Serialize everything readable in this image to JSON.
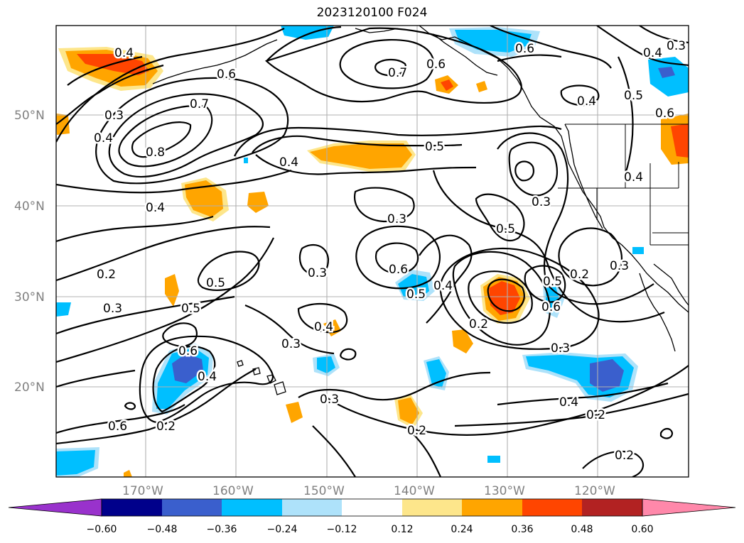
{
  "title": "2023120100 F024",
  "latitude_labels": [
    "50°N",
    "40°N",
    "30°N",
    "20°N"
  ],
  "longitude_labels": [
    "170°W",
    "160°W",
    "150°W",
    "140°W",
    "130°W",
    "120°W"
  ],
  "contour_labels": [
    {
      "text": "0.4",
      "name": "contour-label-gulf-alaska"
    },
    {
      "text": "0.6",
      "name": "contour-label-aleutian"
    },
    {
      "text": "0.7",
      "name": "contour-label-north-low"
    },
    {
      "text": "0.6",
      "name": "contour-label-north-low-outer"
    },
    {
      "text": "0.6",
      "name": "contour-label-alaska-coast"
    },
    {
      "text": "0.4",
      "name": "contour-label-ne-corner"
    },
    {
      "text": "0.3",
      "name": "contour-label-ne-edge"
    },
    {
      "text": "0.5",
      "name": "contour-label-bc-coast"
    },
    {
      "text": "0.6",
      "name": "contour-label-bc-inland"
    },
    {
      "text": "0.4",
      "name": "contour-label-bc-offshore"
    },
    {
      "text": "0.3",
      "name": "contour-label-west-50n"
    },
    {
      "text": "0.4",
      "name": "contour-label-west-48n"
    },
    {
      "text": "0.7",
      "name": "contour-label-west-center"
    },
    {
      "text": "0.8",
      "name": "contour-label-west-max"
    },
    {
      "text": "0.4",
      "name": "contour-label-mid-45n"
    },
    {
      "text": "0.5",
      "name": "contour-label-east-46n"
    },
    {
      "text": "0.4",
      "name": "contour-label-nw-40n"
    },
    {
      "text": "0.3",
      "name": "contour-label-central-38n"
    },
    {
      "text": "0.3",
      "name": "contour-label-oregon-offshore"
    },
    {
      "text": "0.5",
      "name": "contour-label-east-37n"
    },
    {
      "text": "0.4",
      "name": "contour-label-oregon-coast"
    },
    {
      "text": "0.2",
      "name": "contour-label-west-34n"
    },
    {
      "text": "0.5",
      "name": "contour-label-west-32n"
    },
    {
      "text": "0.3",
      "name": "contour-label-central-32n"
    },
    {
      "text": "0.6",
      "name": "contour-label-central-low"
    },
    {
      "text": "0.5",
      "name": "contour-label-central-low-outer"
    },
    {
      "text": "0.4",
      "name": "contour-label-east-low"
    },
    {
      "text": "0.5",
      "name": "contour-label-ca-offshore"
    },
    {
      "text": "0.6",
      "name": "contour-label-ca-offshore-inner"
    },
    {
      "text": "0.2",
      "name": "contour-label-ca-coast"
    },
    {
      "text": "0.3",
      "name": "contour-label-baja-north"
    },
    {
      "text": "0.3",
      "name": "contour-label-west-29n"
    },
    {
      "text": "0.5",
      "name": "contour-label-west-29n-b"
    },
    {
      "text": "0.3",
      "name": "contour-label-central-26n"
    },
    {
      "text": "0.4",
      "name": "contour-label-central-27n"
    },
    {
      "text": "0.2",
      "name": "contour-label-east-27n"
    },
    {
      "text": "0.3",
      "name": "contour-label-east-24n"
    },
    {
      "text": "0.6",
      "name": "contour-label-hawaii-west"
    },
    {
      "text": "0.4",
      "name": "contour-label-hawaii-west-b"
    },
    {
      "text": "0.3",
      "name": "contour-label-south-central"
    },
    {
      "text": "0.2",
      "name": "contour-label-south-central-b"
    },
    {
      "text": "0.6",
      "name": "contour-label-sw"
    },
    {
      "text": "0.2",
      "name": "contour-label-sw-b"
    },
    {
      "text": "0.4",
      "name": "contour-label-se-18n"
    },
    {
      "text": "0.2",
      "name": "contour-label-se-17n"
    },
    {
      "text": "0.2",
      "name": "contour-label-se-corner"
    }
  ],
  "colorbar": {
    "colors": [
      "#9932cc",
      "#00008b",
      "#3a5fcd",
      "#00bfff",
      "#aee2fa",
      "#ffffff",
      "#fde68b",
      "#ffa500",
      "#ff4500",
      "#b22222",
      "#ff88aa"
    ],
    "tick_labels": [
      "−0.60",
      "−0.48",
      "−0.36",
      "−0.24",
      "−0.12",
      "0.12",
      "0.24",
      "0.36",
      "0.48",
      "0.60"
    ]
  }
}
